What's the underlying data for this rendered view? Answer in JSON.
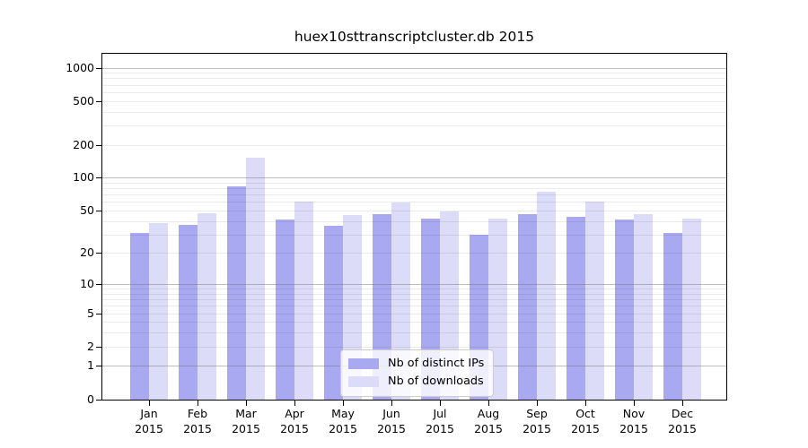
{
  "title": "huex10sttranscriptcluster.db 2015",
  "legend": {
    "items": [
      {
        "label": "Nb of distinct IPs",
        "key": "ips"
      },
      {
        "label": "Nb of downloads",
        "key": "downloads"
      }
    ]
  },
  "colors": {
    "ips_bar": "#a9a9f2",
    "downloads_bar": "#dcdcf9",
    "axis": "#000000",
    "grid_major": "rgba(110,110,110,0.45)",
    "grid_minor": "rgba(0,0,0,0.08)",
    "legend_bg": "rgba(255,255,255,0.8)",
    "legend_border": "#cccccc",
    "background": "#ffffff",
    "text": "#000000"
  },
  "chart_data": {
    "type": "bar",
    "title": "huex10sttranscriptcluster.db 2015",
    "categories": [
      "Jan",
      "Feb",
      "Mar",
      "Apr",
      "May",
      "Jun",
      "Jul",
      "Aug",
      "Sep",
      "Oct",
      "Nov",
      "Dec"
    ],
    "x_year": "2015",
    "series": [
      {
        "name": "Nb of distinct IPs",
        "key": "ips",
        "values": [
          31,
          37,
          83,
          41,
          36,
          46,
          42,
          30,
          46,
          44,
          41,
          31
        ]
      },
      {
        "name": "Nb of downloads",
        "key": "downloads",
        "values": [
          38,
          47,
          152,
          60,
          45,
          59,
          49,
          42,
          75,
          60,
          46,
          42
        ]
      }
    ],
    "yscale": "log10(value+1)",
    "y_tick_values": [
      0,
      1,
      2,
      5,
      10,
      20,
      50,
      100,
      200,
      500,
      1000
    ],
    "y_major_grid_values": [
      1,
      10,
      100,
      1000
    ],
    "y_minor_grid_values": [
      2,
      3,
      4,
      5,
      6,
      7,
      8,
      9,
      20,
      30,
      40,
      50,
      60,
      70,
      80,
      90,
      200,
      300,
      400,
      500,
      600,
      700,
      800,
      900
    ],
    "ylim": [
      0,
      1380
    ],
    "grid": "on",
    "legend_position": "lower-center",
    "xlabel": "",
    "ylabel": ""
  }
}
